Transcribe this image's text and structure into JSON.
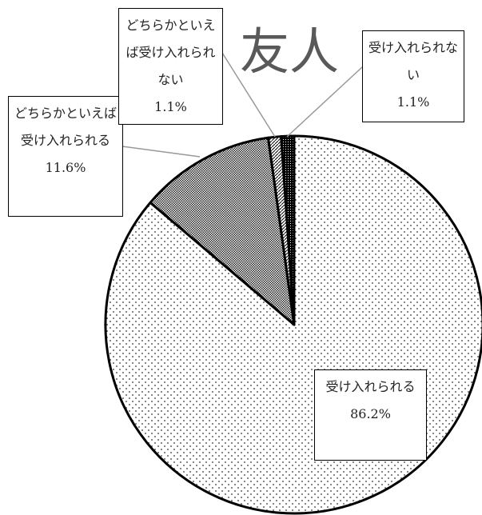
{
  "chart_data": {
    "type": "pie",
    "title": "友人",
    "categories": [
      "受け入れられる",
      "どちらかといえば受け入れられる",
      "どちらかといえば受け入れられない",
      "受け入れられない"
    ],
    "values": [
      86.2,
      11.6,
      1.1,
      1.1
    ],
    "value_labels": [
      "86.2%",
      "11.6%",
      "1.1%",
      "1.1%"
    ]
  }
}
